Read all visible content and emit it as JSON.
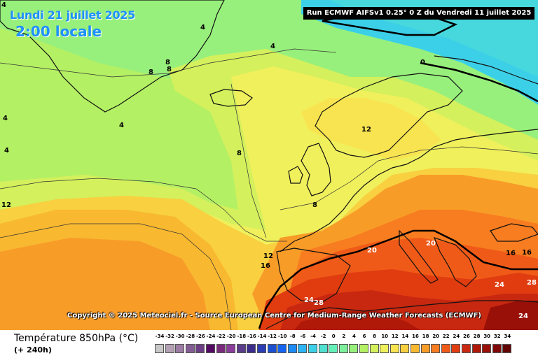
{
  "header": {
    "date": "Lundi 21 juillet 2025",
    "time": "2:00 locale",
    "run": "Run ECMWF AIFSv1 0.25° 0 Z du Vendredi 11 juillet 2025"
  },
  "footer": {
    "copyright": "Copyright © 2025 Meteociel.fr - Source European Centre for Medium-Range Weather Forecasts (ECMWF)",
    "title": "Température 850hPa (°C)",
    "subtitle": "(+ 240h)"
  },
  "legend": {
    "labels": [
      "-34",
      "-32",
      "-30",
      "-28",
      "-26",
      "-24",
      "-22",
      "-20",
      "-18",
      "-16",
      "-14",
      "-12",
      "-10",
      "-8",
      "-6",
      "-4",
      "-2",
      "0",
      "2",
      "4",
      "6",
      "8",
      "10",
      "12",
      "14",
      "16",
      "18",
      "20",
      "22",
      "24",
      "26",
      "28",
      "30",
      "32",
      "34"
    ],
    "colors": [
      "#c8c8c8",
      "#b4a0b4",
      "#9c7ca4",
      "#845c94",
      "#6c3c84",
      "#540a64",
      "#7a2a7a",
      "#8a3c9a",
      "#5a3c8a",
      "#3c2c8c",
      "#2c3cb4",
      "#1c50d0",
      "#1464f0",
      "#1c8cf4",
      "#2cb4f4",
      "#3cd0e8",
      "#50e0d0",
      "#64f0b8",
      "#7ef09c",
      "#98f07c",
      "#b4f064",
      "#d4f05c",
      "#f0f05c",
      "#f8e450",
      "#f8d040",
      "#f8b830",
      "#f89c28",
      "#f87c20",
      "#f05a18",
      "#e03c10",
      "#c82810",
      "#b01808",
      "#981008",
      "#800808",
      "#600404"
    ]
  },
  "contour_labels": [
    "4",
    "4",
    "4",
    "4",
    "4",
    "4",
    "8",
    "8",
    "8",
    "8",
    "8",
    "0",
    "12",
    "12",
    "12",
    "16",
    "16",
    "16",
    "20",
    "20",
    "24",
    "28",
    "24",
    "28",
    "24"
  ]
}
